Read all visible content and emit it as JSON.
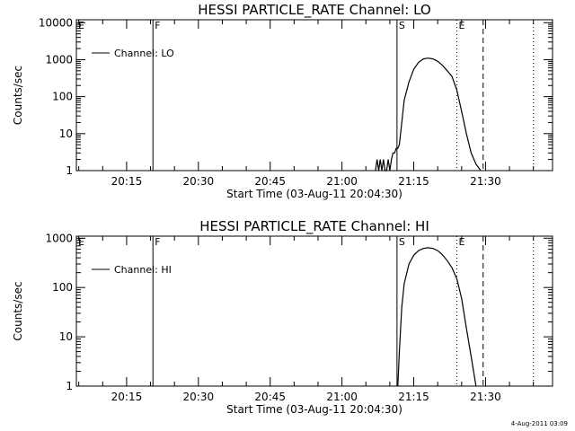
{
  "footer": {
    "timestamp": "4-Aug-2011 03:09"
  },
  "chart_data": [
    {
      "type": "line",
      "title": "HESSI PARTICLE_RATE Channel: LO",
      "xlabel": "Start Time (03-Aug-11 20:04:30)",
      "ylabel": "Counts/sec",
      "yscale": "log",
      "xlim": [
        "20:04:30",
        "21:44:00"
      ],
      "ylim": [
        1,
        12000
      ],
      "x_ticks": [
        "20:15",
        "20:30",
        "20:45",
        "21:00",
        "21:15",
        "21:30"
      ],
      "y_ticks": [
        "1",
        "10",
        "100",
        "1000",
        "10000"
      ],
      "legend": {
        "position": "top-left",
        "entries": [
          "Channel: LO"
        ]
      },
      "series": [
        {
          "name": "Channel: LO",
          "x": [
            "21:07:00",
            "21:07:20",
            "21:07:40",
            "21:08:00",
            "21:08:20",
            "21:08:40",
            "21:09:00",
            "21:09:20",
            "21:09:40",
            "21:10:00",
            "21:10:20",
            "21:10:40",
            "21:11:00",
            "21:11:20",
            "21:11:40",
            "21:12:00",
            "21:12:30",
            "21:13:00",
            "21:14:00",
            "21:15:00",
            "21:16:00",
            "21:17:00",
            "21:18:00",
            "21:19:00",
            "21:20:00",
            "21:21:00",
            "21:22:00",
            "21:23:00",
            "21:24:00",
            "21:25:00",
            "21:26:00",
            "21:27:00",
            "21:28:00",
            "21:29:00"
          ],
          "y": [
            1,
            2,
            1,
            2,
            1,
            2,
            1,
            1,
            2,
            1,
            2,
            3,
            3,
            4,
            4,
            5,
            20,
            80,
            250,
            550,
            850,
            1050,
            1100,
            1050,
            900,
            700,
            500,
            350,
            150,
            40,
            10,
            3,
            1.5,
            1
          ]
        }
      ],
      "markers": [
        {
          "label": "E",
          "time": "20:04:30",
          "style": "solid"
        },
        {
          "label": "F",
          "time": "20:20:30",
          "style": "solid"
        },
        {
          "label": "S",
          "time": "21:11:30",
          "style": "solid"
        },
        {
          "label": "E",
          "time": "21:24:00",
          "style": "dotted"
        },
        {
          "label": "",
          "time": "21:29:30",
          "style": "dashed"
        },
        {
          "label": "",
          "time": "21:40:00",
          "style": "dotted"
        }
      ]
    },
    {
      "type": "line",
      "title": "HESSI PARTICLE_RATE Channel: HI",
      "xlabel": "Start Time (03-Aug-11 20:04:30)",
      "ylabel": "Counts/sec",
      "yscale": "log",
      "xlim": [
        "20:04:30",
        "21:44:00"
      ],
      "ylim": [
        1,
        1100
      ],
      "x_ticks": [
        "20:15",
        "20:30",
        "20:45",
        "21:00",
        "21:15",
        "21:30"
      ],
      "y_ticks": [
        "1",
        "10",
        "100",
        "1000"
      ],
      "legend": {
        "position": "top-left",
        "entries": [
          "Channel: HI"
        ]
      },
      "series": [
        {
          "name": "Channel: HI",
          "x": [
            "21:11:40",
            "21:12:00",
            "21:12:30",
            "21:13:00",
            "21:14:00",
            "21:15:00",
            "21:16:00",
            "21:17:00",
            "21:18:00",
            "21:19:00",
            "21:20:00",
            "21:21:00",
            "21:22:00",
            "21:23:00",
            "21:24:00",
            "21:25:00",
            "21:26:00",
            "21:27:00",
            "21:27:30",
            "21:28:00"
          ],
          "y": [
            1,
            5,
            40,
            120,
            300,
            450,
            560,
            620,
            640,
            620,
            560,
            460,
            350,
            250,
            150,
            60,
            15,
            4,
            2,
            1
          ]
        }
      ],
      "markers": [
        {
          "label": "E",
          "time": "20:04:30",
          "style": "solid"
        },
        {
          "label": "F",
          "time": "20:20:30",
          "style": "solid"
        },
        {
          "label": "S",
          "time": "21:11:30",
          "style": "solid"
        },
        {
          "label": "E",
          "time": "21:24:00",
          "style": "dotted"
        },
        {
          "label": "",
          "time": "21:29:30",
          "style": "dashed"
        },
        {
          "label": "",
          "time": "21:40:00",
          "style": "dotted"
        }
      ]
    }
  ]
}
